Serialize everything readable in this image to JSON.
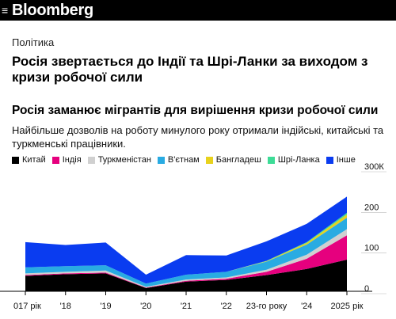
{
  "header": {
    "brand": "Bloomberg",
    "menu_icon": "hamburger-menu-icon"
  },
  "article": {
    "section": "Політика",
    "headline": "Росія звертається до Індії та Шрі-Ланки за виходом з кризи робочої сили"
  },
  "chart_data": {
    "type": "area",
    "title": "Росія заманює мігрантів для вирішення кризи робочої сили",
    "subtitle": "Найбільше дозволів на роботу минулого року отримали індійські, китайські та туркменські працівники.",
    "x": [
      "2017",
      "2018",
      "2019",
      "2020",
      "2021",
      "2022",
      "2023",
      "2024",
      "2025"
    ],
    "x_tick_labels": [
      "017 рік",
      "'18",
      "'19",
      "'20",
      "'21",
      "'22",
      "23-го року",
      "'24",
      "2025 рік"
    ],
    "y_tick_labels": [
      "300К",
      "200",
      "100",
      "0"
    ],
    "ylim": [
      0,
      300
    ],
    "stacked": true,
    "series": [
      {
        "name": "Китай",
        "color": "#000000",
        "values": [
          38,
          42,
          44,
          8,
          24,
          28,
          40,
          55,
          78
        ]
      },
      {
        "name": "Індія",
        "color": "#e6007e",
        "values": [
          2,
          2,
          2,
          1,
          2,
          3,
          8,
          25,
          60
        ]
      },
      {
        "name": "Туркменістан",
        "color": "#d0d0d0",
        "values": [
          4,
          4,
          5,
          2,
          3,
          3,
          5,
          10,
          15
        ]
      },
      {
        "name": "В'єтнам",
        "color": "#29abe2",
        "values": [
          15,
          14,
          13,
          8,
          12,
          14,
          20,
          25,
          28
        ]
      },
      {
        "name": "Бангладеш",
        "color": "#e8d21d",
        "values": [
          0,
          0,
          0,
          0,
          0,
          0,
          1,
          4,
          8
        ]
      },
      {
        "name": "Шрі-Ланка",
        "color": "#3ddc97",
        "values": [
          0,
          0,
          0,
          0,
          0,
          0,
          1,
          2,
          4
        ]
      },
      {
        "name": "Інше",
        "color": "#0a3cf0",
        "values": [
          62,
          52,
          56,
          22,
          48,
          40,
          48,
          45,
          40
        ]
      }
    ]
  }
}
